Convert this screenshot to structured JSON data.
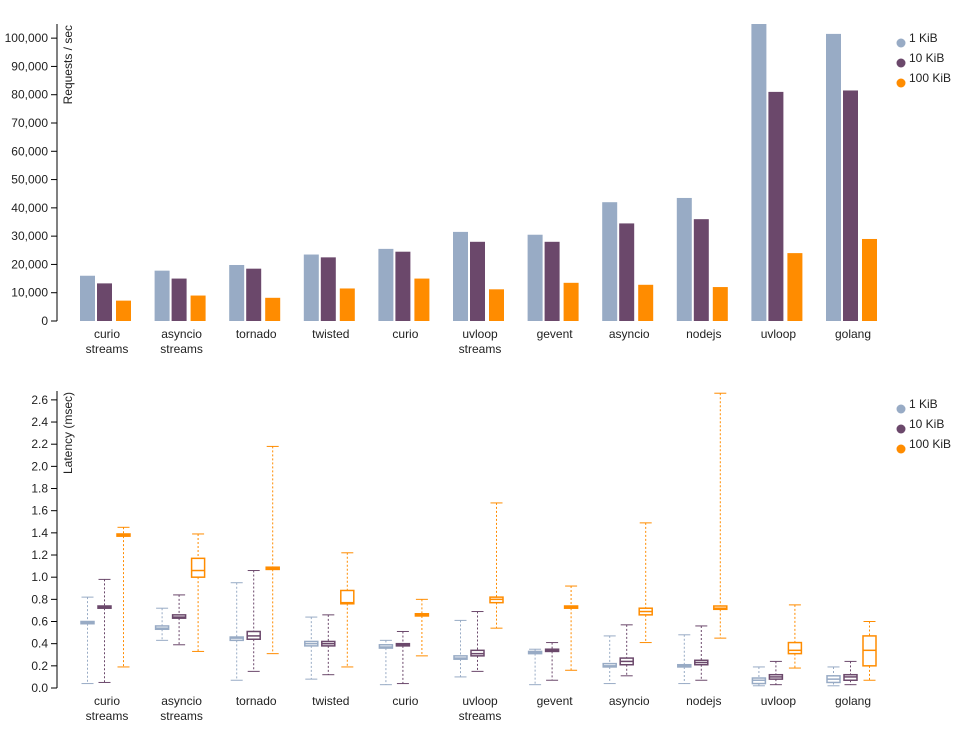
{
  "chart_data": [
    {
      "type": "bar",
      "ylabel": "Requests / sec",
      "ylim": [
        0,
        105000
      ],
      "yticks": [
        0,
        10000,
        20000,
        30000,
        40000,
        50000,
        60000,
        70000,
        80000,
        90000,
        100000
      ],
      "ytick_labels": [
        "0",
        "10,000",
        "20,000",
        "30,000",
        "40,000",
        "50,000",
        "60,000",
        "70,000",
        "80,000",
        "90,000",
        "100,000"
      ],
      "categories": [
        [
          "curio",
          "streams"
        ],
        [
          "asyncio",
          "streams"
        ],
        [
          "tornado"
        ],
        [
          "twisted"
        ],
        [
          "curio"
        ],
        [
          "uvloop",
          "streams"
        ],
        [
          "gevent"
        ],
        [
          "asyncio"
        ],
        [
          "nodejs"
        ],
        [
          "uvloop"
        ],
        [
          "golang"
        ]
      ],
      "legend_position": "top-right",
      "series": [
        {
          "name": "1 KiB",
          "color": "#98abc5",
          "values": [
            16000,
            17800,
            19800,
            23500,
            25500,
            31500,
            30500,
            42000,
            43500,
            105000,
            101500
          ]
        },
        {
          "name": "10 KiB",
          "color": "#6b486b",
          "values": [
            13300,
            15000,
            18500,
            22500,
            24500,
            28000,
            28000,
            34500,
            36000,
            81000,
            81500
          ]
        },
        {
          "name": "100 KiB",
          "color": "#ff8c00",
          "values": [
            7200,
            9000,
            8200,
            11500,
            15000,
            11200,
            13500,
            12800,
            12000,
            24000,
            29000
          ]
        }
      ]
    },
    {
      "type": "box",
      "ylabel": "Latency (msec)",
      "ylim": [
        0,
        2.68
      ],
      "yticks": [
        0,
        0.2,
        0.4,
        0.6,
        0.8,
        1.0,
        1.2,
        1.4,
        1.6,
        1.8,
        2.0,
        2.2,
        2.4,
        2.6
      ],
      "ytick_labels": [
        "0.0",
        "0.2",
        "0.4",
        "0.6",
        "0.8",
        "1.0",
        "1.2",
        "1.4",
        "1.6",
        "1.8",
        "2.0",
        "2.2",
        "2.4",
        "2.6"
      ],
      "categories": [
        [
          "curio",
          "streams"
        ],
        [
          "asyncio",
          "streams"
        ],
        [
          "tornado"
        ],
        [
          "twisted"
        ],
        [
          "curio"
        ],
        [
          "uvloop",
          "streams"
        ],
        [
          "gevent"
        ],
        [
          "asyncio"
        ],
        [
          "nodejs"
        ],
        [
          "uvloop"
        ],
        [
          "golang"
        ]
      ],
      "legend_position": "top-right",
      "series": [
        {
          "name": "1 KiB",
          "color": "#98abc5",
          "boxes": [
            {
              "min": 0.04,
              "q1": 0.58,
              "median": 0.59,
              "q3": 0.6,
              "max": 0.82
            },
            {
              "min": 0.43,
              "q1": 0.53,
              "median": 0.54,
              "q3": 0.56,
              "max": 0.72
            },
            {
              "min": 0.07,
              "q1": 0.43,
              "median": 0.45,
              "q3": 0.46,
              "max": 0.95
            },
            {
              "min": 0.08,
              "q1": 0.38,
              "median": 0.4,
              "q3": 0.42,
              "max": 0.64
            },
            {
              "min": 0.03,
              "q1": 0.36,
              "median": 0.37,
              "q3": 0.39,
              "max": 0.43
            },
            {
              "min": 0.1,
              "q1": 0.26,
              "median": 0.27,
              "q3": 0.29,
              "max": 0.61
            },
            {
              "min": 0.03,
              "q1": 0.31,
              "median": 0.32,
              "q3": 0.33,
              "max": 0.35
            },
            {
              "min": 0.04,
              "q1": 0.19,
              "median": 0.2,
              "q3": 0.22,
              "max": 0.47
            },
            {
              "min": 0.04,
              "q1": 0.19,
              "median": 0.2,
              "q3": 0.21,
              "max": 0.48
            },
            {
              "min": 0.02,
              "q1": 0.04,
              "median": 0.07,
              "q3": 0.09,
              "max": 0.19
            },
            {
              "min": 0.02,
              "q1": 0.05,
              "median": 0.08,
              "q3": 0.11,
              "max": 0.19
            }
          ]
        },
        {
          "name": "10 KiB",
          "color": "#6b486b",
          "boxes": [
            {
              "min": 0.05,
              "q1": 0.72,
              "median": 0.73,
              "q3": 0.74,
              "max": 0.98
            },
            {
              "min": 0.39,
              "q1": 0.63,
              "median": 0.64,
              "q3": 0.66,
              "max": 0.84
            },
            {
              "min": 0.15,
              "q1": 0.44,
              "median": 0.47,
              "q3": 0.51,
              "max": 1.06
            },
            {
              "min": 0.12,
              "q1": 0.38,
              "median": 0.4,
              "q3": 0.42,
              "max": 0.66
            },
            {
              "min": 0.04,
              "q1": 0.38,
              "median": 0.39,
              "q3": 0.4,
              "max": 0.51
            },
            {
              "min": 0.15,
              "q1": 0.29,
              "median": 0.31,
              "q3": 0.34,
              "max": 0.69
            },
            {
              "min": 0.07,
              "q1": 0.33,
              "median": 0.34,
              "q3": 0.35,
              "max": 0.41
            },
            {
              "min": 0.11,
              "q1": 0.21,
              "median": 0.24,
              "q3": 0.27,
              "max": 0.57
            },
            {
              "min": 0.07,
              "q1": 0.21,
              "median": 0.23,
              "q3": 0.25,
              "max": 0.56
            },
            {
              "min": 0.03,
              "q1": 0.08,
              "median": 0.1,
              "q3": 0.12,
              "max": 0.24
            },
            {
              "min": 0.03,
              "q1": 0.07,
              "median": 0.1,
              "q3": 0.12,
              "max": 0.24
            }
          ]
        },
        {
          "name": "100 KiB",
          "color": "#ff8c00",
          "boxes": [
            {
              "min": 0.19,
              "q1": 1.37,
              "median": 1.38,
              "q3": 1.39,
              "max": 1.45
            },
            {
              "min": 0.33,
              "q1": 1.0,
              "median": 1.06,
              "q3": 1.17,
              "max": 1.39
            },
            {
              "min": 0.31,
              "q1": 1.07,
              "median": 1.08,
              "q3": 1.09,
              "max": 2.18
            },
            {
              "min": 0.19,
              "q1": 0.76,
              "median": 0.77,
              "q3": 0.88,
              "max": 1.22
            },
            {
              "min": 0.29,
              "q1": 0.65,
              "median": 0.66,
              "q3": 0.67,
              "max": 0.8
            },
            {
              "min": 0.54,
              "q1": 0.77,
              "median": 0.8,
              "q3": 0.82,
              "max": 1.67
            },
            {
              "min": 0.16,
              "q1": 0.72,
              "median": 0.73,
              "q3": 0.74,
              "max": 0.92
            },
            {
              "min": 0.41,
              "q1": 0.66,
              "median": 0.69,
              "q3": 0.72,
              "max": 1.49
            },
            {
              "min": 0.45,
              "q1": 0.71,
              "median": 0.72,
              "q3": 0.74,
              "max": 2.66
            },
            {
              "min": 0.18,
              "q1": 0.31,
              "median": 0.34,
              "q3": 0.41,
              "max": 0.75
            },
            {
              "min": 0.07,
              "q1": 0.2,
              "median": 0.34,
              "q3": 0.47,
              "max": 0.6
            }
          ]
        }
      ]
    }
  ]
}
